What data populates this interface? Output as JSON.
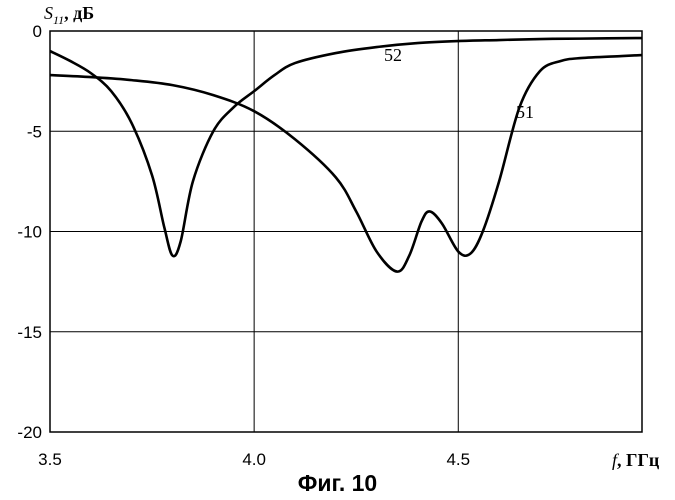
{
  "caption": "Фиг. 10",
  "chart_data": {
    "type": "line",
    "y_axis_label": {
      "symbol": "S",
      "subscript": "11",
      "unit": ", дБ"
    },
    "x_axis_label": {
      "symbol": "f",
      "unit": ", ГГц"
    },
    "xlim": [
      3.5,
      4.95
    ],
    "ylim": [
      -20,
      0
    ],
    "x_ticks": [
      "3.5",
      "4.0",
      "4.5"
    ],
    "x_tick_values": [
      3.5,
      4.0,
      4.5
    ],
    "y_ticks": [
      "0",
      "-5",
      "-10",
      "-15",
      "-20"
    ],
    "y_tick_values": [
      0,
      -5,
      -10,
      -15,
      -20
    ],
    "grid": true,
    "series": [
      {
        "name": "51",
        "x": [
          3.5,
          3.6,
          3.7,
          3.8,
          3.9,
          4.0,
          4.1,
          4.2,
          4.25,
          4.3,
          4.35,
          4.38,
          4.41,
          4.43,
          4.46,
          4.5,
          4.53,
          4.56,
          4.6,
          4.65,
          4.7,
          4.75,
          4.8,
          4.9,
          4.95
        ],
        "y": [
          -2.2,
          -2.3,
          -2.45,
          -2.7,
          -3.2,
          -4.0,
          -5.4,
          -7.3,
          -9.0,
          -11.0,
          -12.0,
          -11.2,
          -9.5,
          -9.0,
          -9.6,
          -11.0,
          -11.1,
          -10.0,
          -7.5,
          -3.8,
          -2.0,
          -1.5,
          -1.35,
          -1.25,
          -1.2
        ]
      },
      {
        "name": "52",
        "x": [
          3.5,
          3.55,
          3.6,
          3.65,
          3.7,
          3.75,
          3.78,
          3.8,
          3.82,
          3.85,
          3.9,
          3.95,
          4.0,
          4.05,
          4.1,
          4.2,
          4.3,
          4.4,
          4.5,
          4.6,
          4.7,
          4.8,
          4.95
        ],
        "y": [
          -1.0,
          -1.5,
          -2.1,
          -3.0,
          -4.6,
          -7.2,
          -9.8,
          -11.2,
          -10.5,
          -7.5,
          -5.0,
          -3.8,
          -3.0,
          -2.2,
          -1.6,
          -1.1,
          -0.8,
          -0.6,
          -0.5,
          -0.45,
          -0.4,
          -0.38,
          -0.35
        ]
      }
    ],
    "series_labels": [
      "52",
      "51"
    ]
  }
}
